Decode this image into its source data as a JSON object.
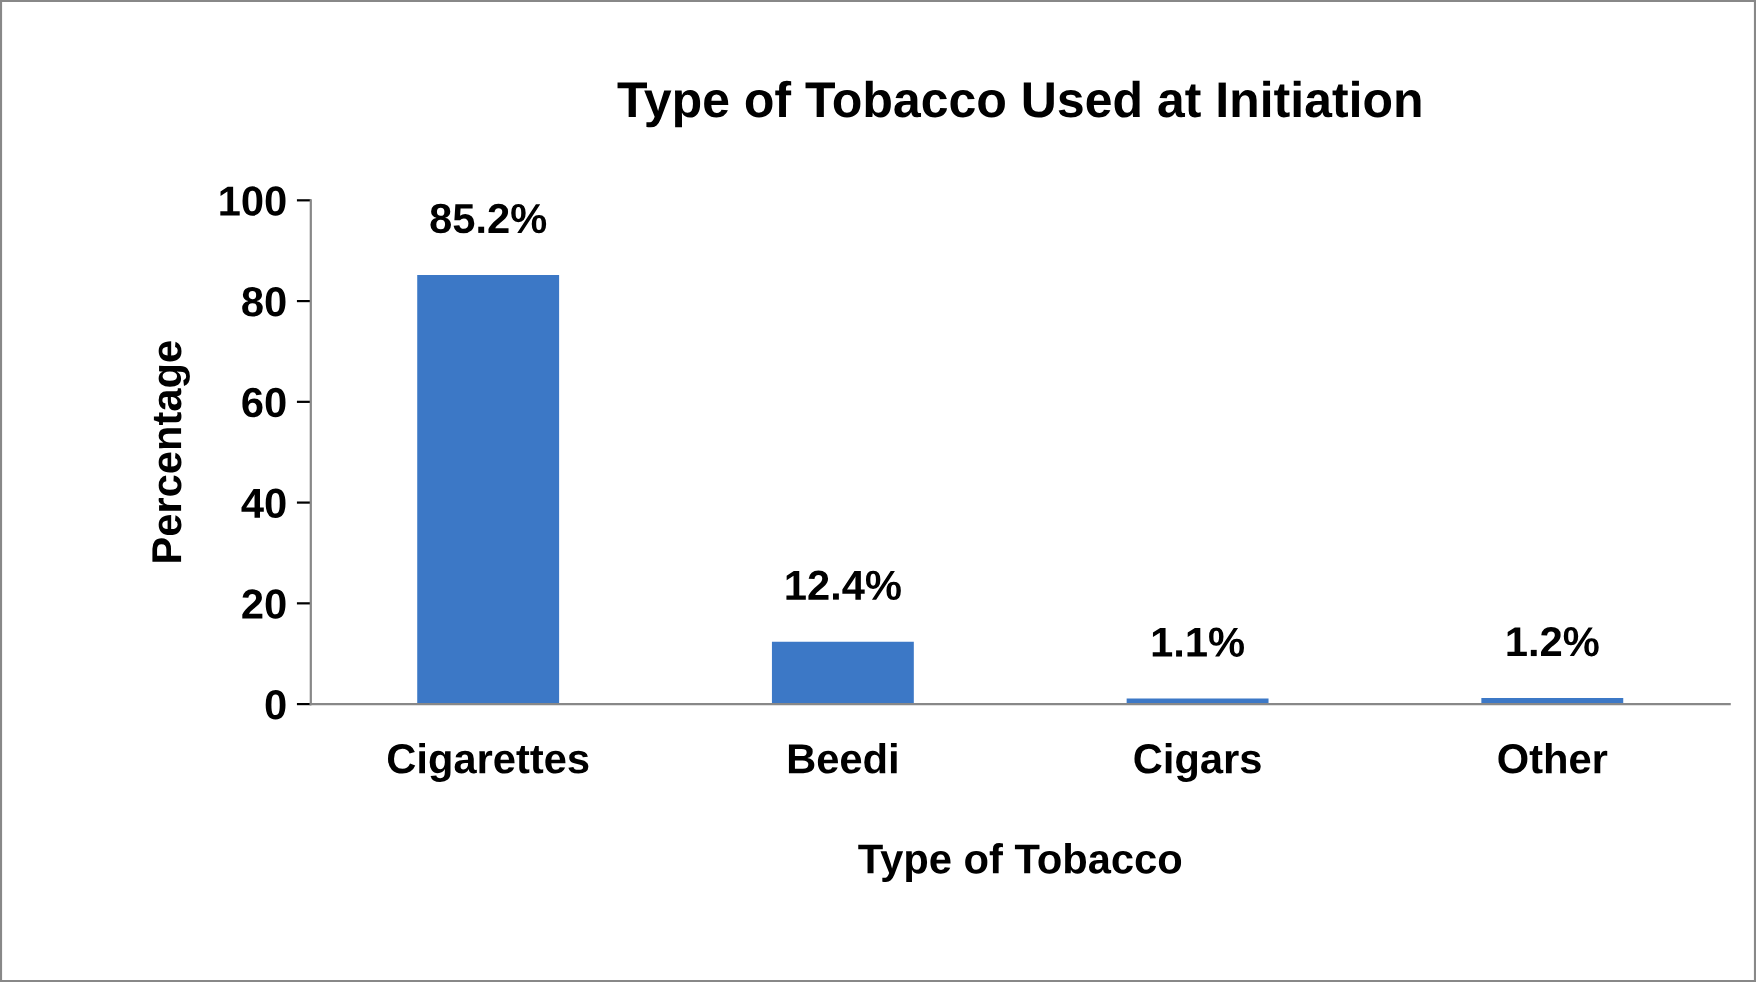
{
  "chart_data": {
    "type": "bar",
    "title": "Type of Tobacco Used at Initiation",
    "xlabel": "Type of Tobacco",
    "ylabel": "Percentage",
    "categories": [
      "Cigarettes",
      "Beedi",
      "Cigars",
      "Other"
    ],
    "values": [
      85.2,
      12.4,
      1.1,
      1.2
    ],
    "value_labels": [
      "85.2%",
      "12.4%",
      "1.1%",
      "1.2%"
    ],
    "color": "#3c78c6",
    "ylim": [
      0,
      100
    ],
    "yticks": [
      0,
      20,
      40,
      60,
      80,
      100
    ],
    "grid": false,
    "legend": false
  }
}
